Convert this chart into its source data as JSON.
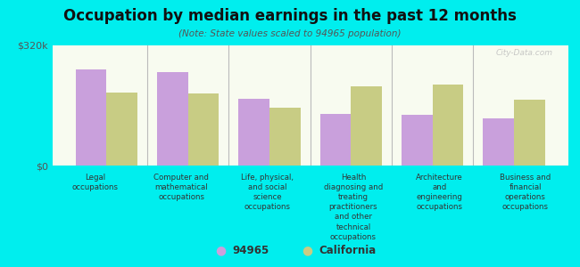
{
  "title": "Occupation by median earnings in the past 12 months",
  "subtitle": "(Note: State values scaled to 94965 population)",
  "background_color": "#00EEEE",
  "plot_bg_top": "#e8f0d0",
  "plot_bg_bottom": "#f8fbf0",
  "categories": [
    "Legal\noccupations",
    "Computer and\nmathematical\noccupations",
    "Life, physical,\nand social\nscience\noccupations",
    "Health\ndiagnosing and\ntreating\npractitioners\nand other\ntechnical\noccupations",
    "Architecture\nand\nengineering\noccupations",
    "Business and\nfinancial\noperations\noccupations"
  ],
  "values_94965": [
    255000,
    248000,
    178000,
    138000,
    135000,
    125000
  ],
  "values_california": [
    195000,
    192000,
    155000,
    210000,
    215000,
    175000
  ],
  "color_94965": "#c9a0dc",
  "color_california": "#c8cc84",
  "ylim": [
    0,
    320000
  ],
  "yticks": [
    0,
    320000
  ],
  "ytick_labels": [
    "$0",
    "$320k"
  ],
  "legend_label_94965": "94965",
  "legend_label_california": "California",
  "bar_width": 0.38,
  "watermark": "City-Data.com"
}
